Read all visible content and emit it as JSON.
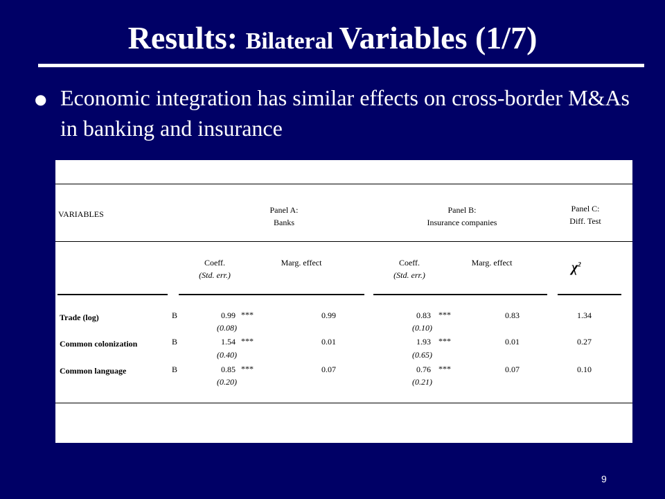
{
  "slide": {
    "title_part1": "Results: ",
    "title_part2": "Bilateral ",
    "title_part3": "Variables (1/7)",
    "bullet_symbol": "●",
    "bullet_text": "Economic integration has similar effects on cross-border M&As in banking and insurance",
    "page_number": "9"
  },
  "table": {
    "variables_header": "VARIABLES",
    "panel_a_line1": "Panel A:",
    "panel_a_line2": "Banks",
    "panel_b_line1": "Panel B:",
    "panel_b_line2": "Insurance companies",
    "panel_c_line1": "Panel C:",
    "panel_c_line2": "Diff. Test",
    "coeff_label": "Coeff.",
    "std_err_label": "(Std. err.)",
    "marg_label": "Marg. effect",
    "chi_symbol": "χ",
    "chi_sup": "2",
    "rows": [
      {
        "name": "Trade (log)",
        "tag": "B",
        "a_coef": "0.99",
        "a_sig": "***",
        "a_se": "(0.08)",
        "a_marg": "0.99",
        "b_coef": "0.83",
        "b_sig": "***",
        "b_se": "(0.10)",
        "b_marg": "0.83",
        "chi2": "1.34"
      },
      {
        "name": "Common colonization",
        "tag": "B",
        "a_coef": "1.54",
        "a_sig": "***",
        "a_se": "(0.40)",
        "a_marg": "0.01",
        "b_coef": "1.93",
        "b_sig": "***",
        "b_se": "(0.65)",
        "b_marg": "0.01",
        "chi2": "0.27"
      },
      {
        "name": "Common language",
        "tag": "B",
        "a_coef": "0.85",
        "a_sig": "***",
        "a_se": "(0.20)",
        "a_marg": "0.07",
        "b_coef": "0.76",
        "b_sig": "***",
        "b_se": "(0.21)",
        "b_marg": "0.07",
        "chi2": "0.10"
      }
    ]
  },
  "colors": {
    "background": "#000066",
    "text": "#ffffff",
    "table_bg": "#ffffff"
  }
}
